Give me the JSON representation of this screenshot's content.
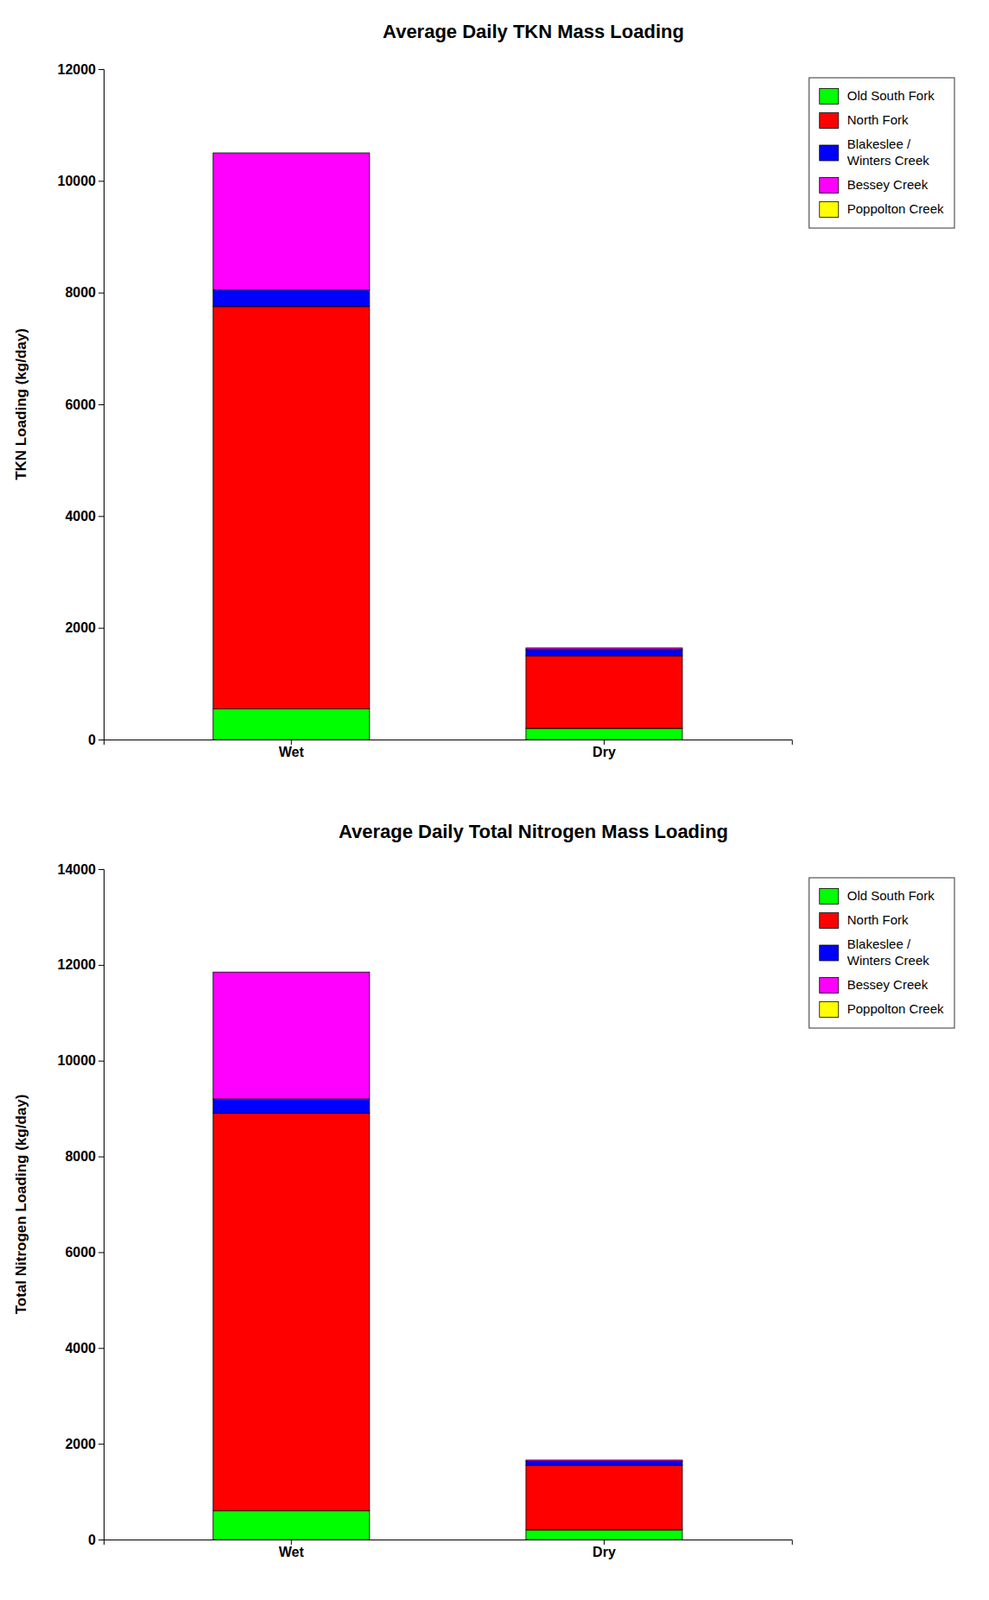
{
  "chart_data": [
    {
      "type": "bar",
      "stacked": true,
      "grid": false,
      "legend": "upper right",
      "title": "Average Daily TKN Mass Loading",
      "ylabel": "TKN Loading (kg/day)",
      "categories": [
        "Wet",
        "Dry"
      ],
      "series": [
        {
          "name": "Old South Fork",
          "color": "#00FF00",
          "values": [
            550,
            200
          ]
        },
        {
          "name": "North Fork",
          "color": "#FF0000",
          "values": [
            7200,
            1300
          ]
        },
        {
          "name": "Blakeslee /\nWinters Creek",
          "color": "#0000FF",
          "values": [
            300,
            110
          ]
        },
        {
          "name": "Bessey Creek",
          "color": "#FF00FF",
          "values": [
            2450,
            30
          ]
        },
        {
          "name": "Poppolton Creek",
          "color": "#FFFF00",
          "values": [
            0,
            0
          ]
        }
      ],
      "ylim": [
        0,
        12000
      ],
      "yticks": [
        0,
        2000,
        4000,
        6000,
        8000,
        10000,
        12000
      ]
    },
    {
      "type": "bar",
      "stacked": true,
      "grid": false,
      "legend": "upper right",
      "title": "Average Daily Total Nitrogen Mass Loading",
      "ylabel": "Total Nitrogen Loading (kg/day)",
      "categories": [
        "Wet",
        "Dry"
      ],
      "series": [
        {
          "name": "Old South Fork",
          "color": "#00FF00",
          "values": [
            600,
            200
          ]
        },
        {
          "name": "North Fork",
          "color": "#FF0000",
          "values": [
            8300,
            1350
          ]
        },
        {
          "name": "Blakeslee /\nWinters Creek",
          "color": "#0000FF",
          "values": [
            300,
            80
          ]
        },
        {
          "name": "Bessey Creek",
          "color": "#FF00FF",
          "values": [
            2650,
            30
          ]
        },
        {
          "name": "Poppolton Creek",
          "color": "#FFFF00",
          "values": [
            0,
            0
          ]
        }
      ],
      "ylim": [
        0,
        14000
      ],
      "yticks": [
        0,
        2000,
        4000,
        6000,
        8000,
        10000,
        12000,
        14000
      ]
    }
  ]
}
